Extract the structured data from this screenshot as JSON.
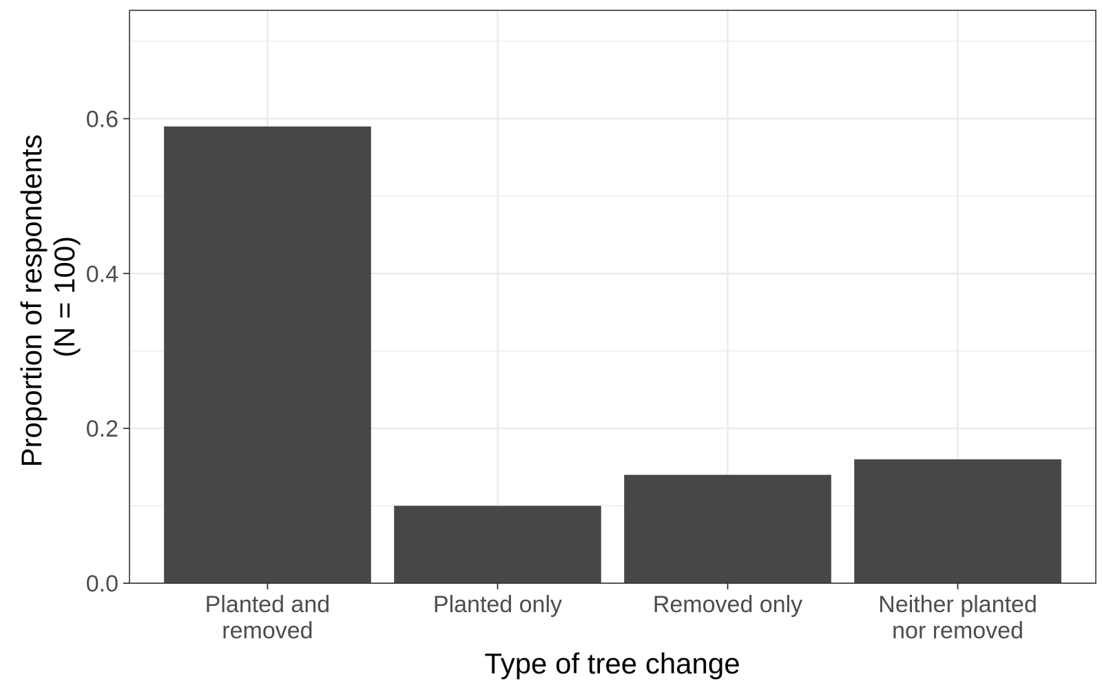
{
  "chart_data": {
    "type": "bar",
    "categories": [
      [
        "Planted and",
        "removed"
      ],
      [
        "Planted only"
      ],
      [
        "Removed only"
      ],
      [
        "Neither planted",
        "nor removed"
      ]
    ],
    "values": [
      0.59,
      0.1,
      0.14,
      0.16
    ],
    "xlabel": "Type of tree change",
    "ylabel": [
      "Proportion of respondents",
      "(N = 100)"
    ],
    "ylim": [
      0,
      0.74
    ],
    "yticks": [
      0.0,
      0.2,
      0.4,
      0.6
    ],
    "ytick_labels": [
      "0.0",
      "0.2",
      "0.4",
      "0.6"
    ],
    "grid": true,
    "colors": {
      "bar": "#474747",
      "grid": "#ebebeb",
      "panel_border": "#333333",
      "tick_text": "#4d4d4d",
      "title_text": "#000000",
      "background": "#ffffff"
    }
  }
}
